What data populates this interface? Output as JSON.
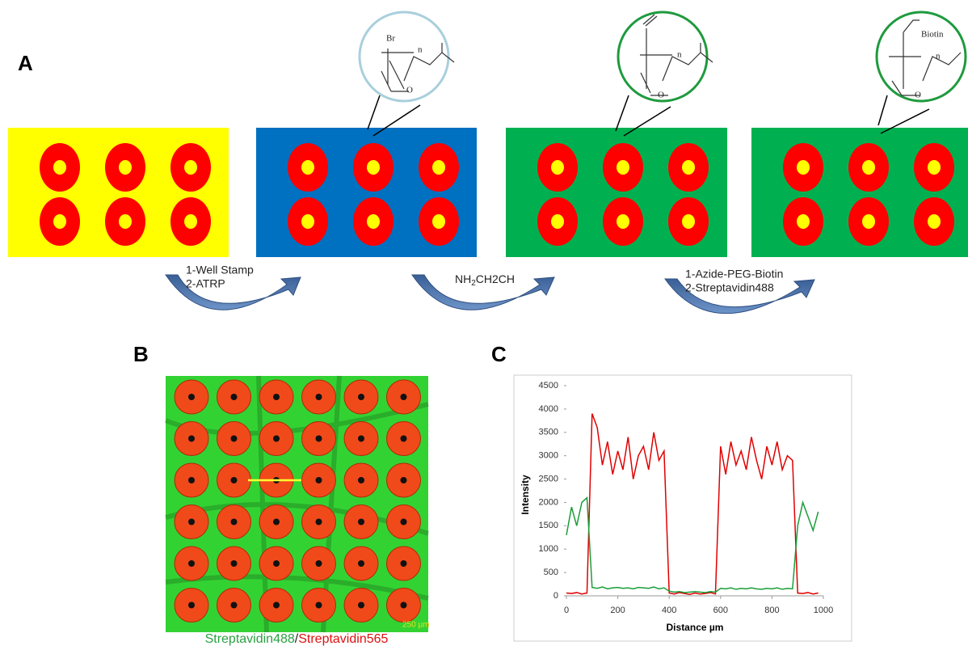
{
  "panel_a": {
    "label": "A",
    "plates": [
      {
        "color": "#ffff00"
      },
      {
        "color": "#0070c0"
      },
      {
        "color": "#00b050"
      },
      {
        "color": "#00b050"
      }
    ],
    "chem": [
      {
        "atom": "Br",
        "n": "n",
        "o": "O"
      },
      {
        "n": "n",
        "o": "O"
      },
      {
        "group": "Biotin",
        "n": "n",
        "o": "O"
      }
    ],
    "steps": [
      {
        "lines": [
          "1-Well Stamp",
          "2-ATRP"
        ]
      },
      {
        "parts": [
          "NH",
          "2",
          "CH2CH"
        ]
      },
      {
        "lines": [
          "1-Azide-PEG-Biotin",
          "2-Streptavidin488"
        ]
      }
    ]
  },
  "panel_b": {
    "label": "B",
    "scale": "250 µm",
    "caption": [
      "Streptavidin488",
      "/",
      "Streptavidin565"
    ]
  },
  "panel_c": {
    "label": "C"
  },
  "chart_data": {
    "type": "line",
    "x_label": "Distance µm",
    "y_label": "Intensity",
    "xlim": [
      0,
      1000
    ],
    "xticks": [
      0,
      200,
      400,
      600,
      800,
      1000
    ],
    "ylim": [
      0,
      4500
    ],
    "yticks": [
      0,
      500,
      1000,
      1500,
      2000,
      2500,
      3000,
      3500,
      4000,
      4500
    ],
    "x": [
      0,
      20,
      40,
      60,
      80,
      100,
      120,
      140,
      160,
      180,
      200,
      220,
      240,
      260,
      280,
      300,
      320,
      340,
      360,
      380,
      400,
      420,
      440,
      460,
      480,
      500,
      520,
      540,
      560,
      580,
      600,
      620,
      640,
      660,
      680,
      700,
      720,
      740,
      760,
      780,
      800,
      820,
      840,
      860,
      880,
      900,
      920,
      940,
      960,
      980
    ],
    "series": [
      {
        "name": "Streptavidin565",
        "color": "#e00000",
        "values": [
          60,
          50,
          70,
          40,
          60,
          3900,
          3600,
          2800,
          3300,
          2600,
          3100,
          2700,
          3400,
          2500,
          3000,
          3200,
          2700,
          3500,
          2900,
          3100,
          60,
          40,
          70,
          50,
          30,
          60,
          40,
          50,
          70,
          40,
          3200,
          2600,
          3300,
          2800,
          3100,
          2700,
          3400,
          2900,
          2500,
          3200,
          2800,
          3300,
          2700,
          3000,
          2900,
          60,
          50,
          70,
          40,
          60
        ]
      },
      {
        "name": "Streptavidin488",
        "color": "#1a9e3a",
        "values": [
          1300,
          1900,
          1500,
          2000,
          2100,
          180,
          160,
          190,
          150,
          170,
          180,
          160,
          170,
          150,
          180,
          170,
          160,
          190,
          150,
          170,
          100,
          80,
          90,
          70,
          80,
          90,
          80,
          70,
          90,
          80,
          160,
          150,
          170,
          140,
          160,
          150,
          170,
          150,
          140,
          160,
          150,
          170,
          140,
          160,
          150,
          1500,
          2000,
          1700,
          1400,
          1800
        ]
      }
    ]
  }
}
